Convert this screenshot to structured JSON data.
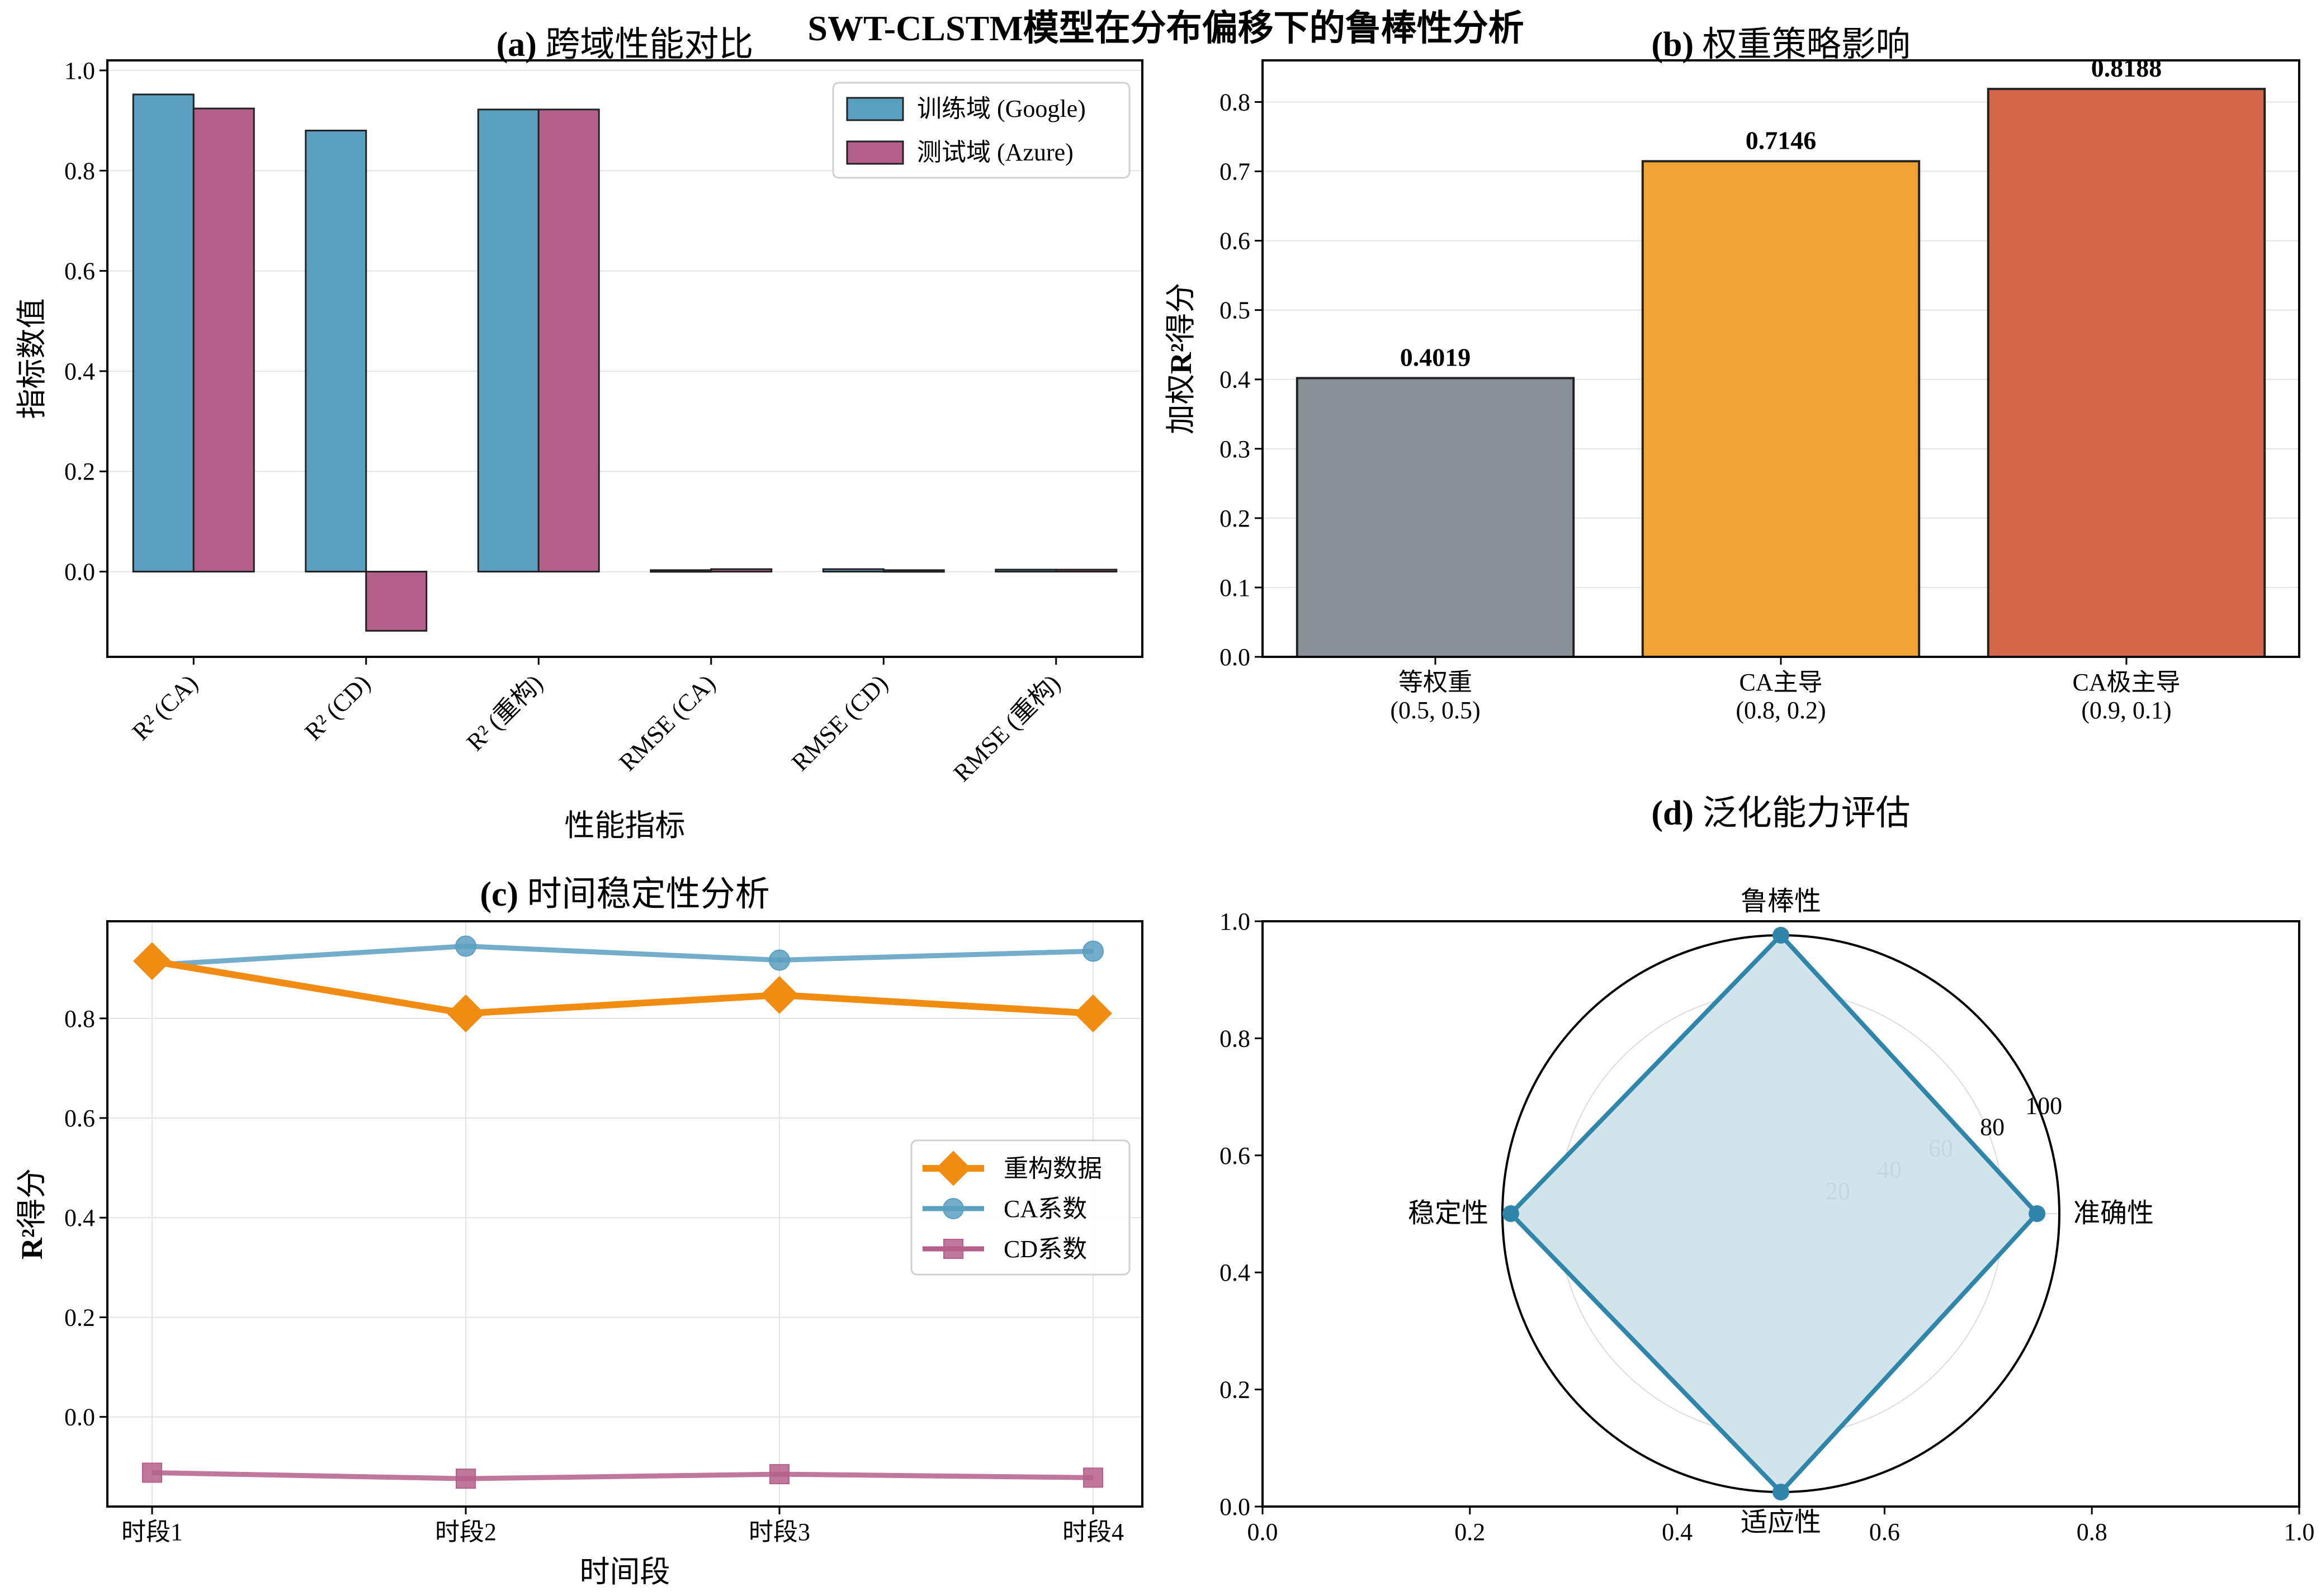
{
  "figure_title": "SWT-CLSTM模型在分布偏移下的鲁棒性分析",
  "colors": {
    "blue": "#5a9fbf",
    "magenta": "#b4608a",
    "orange": "#f08c12",
    "gray": "#8a9098",
    "amber": "#f0a232",
    "red": "#d4664a",
    "radar_line": "#2f86aa",
    "radar_fill": "#cfe2ea",
    "grid": "#e3e3e3"
  },
  "chart_data": [
    {
      "id": "a",
      "type": "bar",
      "title_prefix": "(a)",
      "title": "跨域性能对比",
      "xlabel": "性能指标",
      "ylabel": "指标数值",
      "categories": [
        "R² (CA)",
        "R² (CD)",
        "R² (重构)",
        "RMSE (CA)",
        "RMSE (CD)",
        "RMSE (重构)"
      ],
      "series": [
        {
          "name": "训练域 (Google)",
          "color": "#5a9fbf",
          "values": [
            0.952,
            0.88,
            0.922,
            0.003,
            0.005,
            0.004
          ]
        },
        {
          "name": "测试域 (Azure)",
          "color": "#b4608a",
          "values": [
            0.924,
            -0.118,
            0.922,
            0.005,
            0.003,
            0.004
          ]
        }
      ],
      "ylim": [
        -0.17,
        1.02
      ],
      "yticks": [
        0.0,
        0.2,
        0.4,
        0.6,
        0.8,
        1.0
      ],
      "ytick_labels": [
        "0.0",
        "0.2",
        "0.4",
        "0.6",
        "0.8",
        "1.0"
      ],
      "grid": true,
      "legend": "top-right"
    },
    {
      "id": "b",
      "type": "bar",
      "title_prefix": "(b)",
      "title": "权重策略影响",
      "xlabel": "",
      "ylabel_pre": "加权",
      "ylabel_bold": "R²",
      "ylabel_post": "得分",
      "categories": [
        {
          "name": "等权重",
          "sub": "(0.5, 0.5)"
        },
        {
          "name": "CA主导",
          "sub": "(0.8, 0.2)"
        },
        {
          "name": "CA极主导",
          "sub": "(0.9, 0.1)"
        }
      ],
      "values": [
        0.4019,
        0.7146,
        0.8188
      ],
      "value_labels": [
        "0.4019",
        "0.7146",
        "0.8188"
      ],
      "bar_colors": [
        "#8a9098",
        "#f0a232",
        "#d4664a"
      ],
      "ylim": [
        0,
        0.86
      ],
      "yticks": [
        0.0,
        0.1,
        0.2,
        0.3,
        0.4,
        0.5,
        0.6,
        0.7,
        0.8
      ],
      "ytick_labels": [
        "0.0",
        "0.1",
        "0.2",
        "0.3",
        "0.4",
        "0.5",
        "0.6",
        "0.7",
        "0.8"
      ],
      "grid": true
    },
    {
      "id": "c",
      "type": "line",
      "title_prefix": "(c)",
      "title": "时间稳定性分析",
      "xlabel": "时间段",
      "ylabel_bold": "R²",
      "ylabel_post": "得分",
      "categories": [
        "时段1",
        "时段2",
        "时段3",
        "时段4"
      ],
      "series": [
        {
          "name": "重构数据",
          "color": "#f08c12",
          "marker": "diamond",
          "values": [
            0.915,
            0.81,
            0.847,
            0.81
          ]
        },
        {
          "name": "CA系数",
          "color": "#5a9fbf",
          "marker": "circle",
          "values": [
            0.907,
            0.945,
            0.917,
            0.935
          ]
        },
        {
          "name": "CD系数",
          "color": "#b4608a",
          "marker": "square",
          "values": [
            -0.112,
            -0.124,
            -0.115,
            -0.122
          ]
        }
      ],
      "ylim": [
        -0.18,
        0.995
      ],
      "yticks": [
        0.0,
        0.2,
        0.4,
        0.6,
        0.8
      ],
      "ytick_labels": [
        "0.0",
        "0.2",
        "0.4",
        "0.6",
        "0.8"
      ],
      "grid": true,
      "legend": "center-right"
    },
    {
      "id": "d",
      "type": "radar",
      "title_prefix": "(d)",
      "title": "泛化能力评估",
      "axes": [
        "准确性",
        "鲁棒性",
        "稳定性",
        "适应性"
      ],
      "values": [
        92,
        100,
        97,
        100
      ],
      "rmax": 100,
      "rticks": [
        20,
        40,
        60,
        80,
        100
      ],
      "rtick_labels": [
        "20",
        "40",
        "60",
        "80",
        "100"
      ],
      "frame_ticks": [
        "0.0",
        "0.2",
        "0.4",
        "0.6",
        "0.8",
        "1.0"
      ]
    }
  ]
}
